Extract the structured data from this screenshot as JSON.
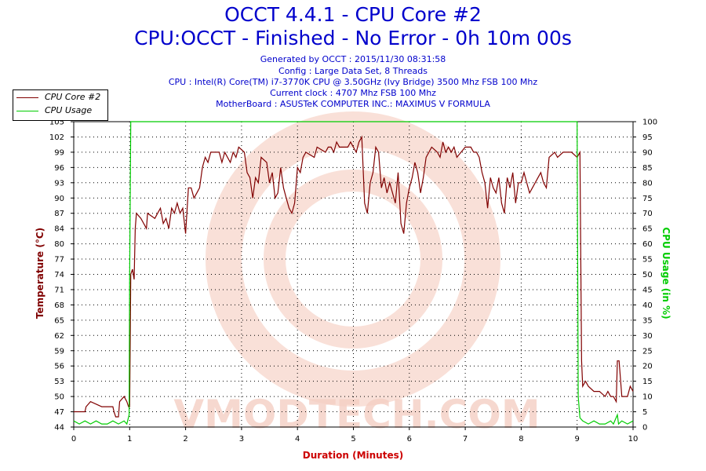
{
  "header": {
    "title": "OCCT 4.4.1 - CPU Core #2",
    "subtitle": "CPU:OCCT - Finished - No Error - 0h 10m 00s",
    "info_lines": [
      "Generated by OCCT : 2015/11/30 08:31:58",
      "Config : Large Data Set, 8 Threads",
      "CPU : Intel(R) Core(TM) i7-3770K CPU @ 3.50GHz (Ivy Bridge) 3500 Mhz FSB 100 Mhz",
      "Current clock : 4707 Mhz FSB 100 Mhz",
      "MotherBoard : ASUSTeK COMPUTER INC.: MAXIMUS V FORMULA"
    ]
  },
  "watermark": "VMODTECH.COM",
  "chart_data": {
    "type": "line",
    "xlabel": "Duration (Minutes)",
    "ylabel_left": "Temperature (°C)",
    "ylabel_right": "CPU Usage (in %)",
    "xlim": [
      0,
      10
    ],
    "x_ticks": [
      "0",
      "1",
      "2",
      "3",
      "4",
      "5",
      "6",
      "7",
      "8",
      "9",
      "10"
    ],
    "ylim_left": [
      44,
      104
    ],
    "y_ticks_left": [
      "44",
      "47",
      "50",
      "53",
      "56",
      "59",
      "62",
      "65",
      "68",
      "71",
      "74",
      "77",
      "80",
      "84",
      "87",
      "90",
      "93",
      "96",
      "99",
      "102",
      "105"
    ],
    "ylim_right": [
      0,
      100
    ],
    "y_ticks_right": [
      "0",
      "5",
      "10",
      "15",
      "20",
      "25",
      "30",
      "35",
      "40",
      "45",
      "50",
      "55",
      "60",
      "65",
      "70",
      "75",
      "80",
      "85",
      "90",
      "95",
      "100"
    ],
    "grid": true,
    "legend_position": "top-left",
    "series": [
      {
        "name": "CPU Core #2",
        "axis": "left",
        "color": "#800000",
        "points": [
          [
            0,
            47
          ],
          [
            0.2,
            47
          ],
          [
            0.22,
            48
          ],
          [
            0.3,
            49
          ],
          [
            0.5,
            48
          ],
          [
            0.7,
            48
          ],
          [
            0.72,
            47
          ],
          [
            0.75,
            46
          ],
          [
            0.8,
            46
          ],
          [
            0.82,
            49
          ],
          [
            0.9,
            50
          ],
          [
            0.95,
            49
          ],
          [
            0.98,
            48
          ],
          [
            1.0,
            48
          ],
          [
            1.02,
            74
          ],
          [
            1.05,
            75
          ],
          [
            1.08,
            73
          ],
          [
            1.1,
            83
          ],
          [
            1.12,
            86
          ],
          [
            1.2,
            85
          ],
          [
            1.3,
            83
          ],
          [
            1.32,
            86
          ],
          [
            1.45,
            85
          ],
          [
            1.5,
            86
          ],
          [
            1.55,
            87
          ],
          [
            1.6,
            84
          ],
          [
            1.65,
            85
          ],
          [
            1.7,
            83
          ],
          [
            1.75,
            87
          ],
          [
            1.8,
            86
          ],
          [
            1.85,
            88
          ],
          [
            1.9,
            86
          ],
          [
            1.95,
            87
          ],
          [
            2.0,
            82
          ],
          [
            2.05,
            91
          ],
          [
            2.1,
            91
          ],
          [
            2.15,
            89
          ],
          [
            2.2,
            90
          ],
          [
            2.25,
            91
          ],
          [
            2.3,
            95
          ],
          [
            2.35,
            97
          ],
          [
            2.4,
            96
          ],
          [
            2.45,
            98
          ],
          [
            2.6,
            98
          ],
          [
            2.65,
            96
          ],
          [
            2.7,
            98
          ],
          [
            2.8,
            96
          ],
          [
            2.85,
            98
          ],
          [
            2.9,
            97
          ],
          [
            2.95,
            99
          ],
          [
            3.05,
            98
          ],
          [
            3.1,
            94
          ],
          [
            3.15,
            93
          ],
          [
            3.2,
            89
          ],
          [
            3.25,
            93
          ],
          [
            3.3,
            92
          ],
          [
            3.35,
            97
          ],
          [
            3.45,
            96
          ],
          [
            3.5,
            92
          ],
          [
            3.55,
            94
          ],
          [
            3.6,
            89
          ],
          [
            3.65,
            90
          ],
          [
            3.7,
            95
          ],
          [
            3.75,
            91
          ],
          [
            3.8,
            89
          ],
          [
            3.85,
            87
          ],
          [
            3.9,
            86
          ],
          [
            3.95,
            88
          ],
          [
            4.0,
            95
          ],
          [
            4.05,
            94
          ],
          [
            4.1,
            97
          ],
          [
            4.15,
            98
          ],
          [
            4.3,
            97
          ],
          [
            4.35,
            99
          ],
          [
            4.5,
            98
          ],
          [
            4.55,
            99
          ],
          [
            4.6,
            99
          ],
          [
            4.65,
            98
          ],
          [
            4.7,
            100
          ],
          [
            4.75,
            99
          ],
          [
            4.8,
            99
          ],
          [
            4.9,
            99
          ],
          [
            4.95,
            100
          ],
          [
            5.0,
            99
          ],
          [
            5.05,
            98
          ],
          [
            5.1,
            100
          ],
          [
            5.15,
            101
          ],
          [
            5.2,
            88
          ],
          [
            5.25,
            86
          ],
          [
            5.3,
            92
          ],
          [
            5.35,
            94
          ],
          [
            5.4,
            99
          ],
          [
            5.45,
            98
          ],
          [
            5.5,
            91
          ],
          [
            5.55,
            93
          ],
          [
            5.6,
            90
          ],
          [
            5.65,
            92
          ],
          [
            5.7,
            90
          ],
          [
            5.75,
            88
          ],
          [
            5.8,
            94
          ],
          [
            5.85,
            84
          ],
          [
            5.9,
            82
          ],
          [
            5.95,
            88
          ],
          [
            6.0,
            91
          ],
          [
            6.05,
            93
          ],
          [
            6.1,
            96
          ],
          [
            6.15,
            94
          ],
          [
            6.2,
            90
          ],
          [
            6.25,
            93
          ],
          [
            6.3,
            97
          ],
          [
            6.4,
            99
          ],
          [
            6.5,
            98
          ],
          [
            6.55,
            97
          ],
          [
            6.6,
            100
          ],
          [
            6.65,
            98
          ],
          [
            6.7,
            99
          ],
          [
            6.75,
            98
          ],
          [
            6.8,
            99
          ],
          [
            6.85,
            97
          ],
          [
            7.0,
            99
          ],
          [
            7.1,
            99
          ],
          [
            7.15,
            98
          ],
          [
            7.2,
            98
          ],
          [
            7.25,
            97
          ],
          [
            7.3,
            94
          ],
          [
            7.35,
            92
          ],
          [
            7.4,
            87
          ],
          [
            7.45,
            93
          ],
          [
            7.5,
            91
          ],
          [
            7.55,
            90
          ],
          [
            7.6,
            93
          ],
          [
            7.65,
            88
          ],
          [
            7.7,
            86
          ],
          [
            7.75,
            93
          ],
          [
            7.8,
            91
          ],
          [
            7.85,
            94
          ],
          [
            7.9,
            88
          ],
          [
            7.95,
            92
          ],
          [
            8.0,
            92
          ],
          [
            8.05,
            94
          ],
          [
            8.1,
            92
          ],
          [
            8.15,
            90
          ],
          [
            8.2,
            91
          ],
          [
            8.3,
            93
          ],
          [
            8.35,
            94
          ],
          [
            8.4,
            92
          ],
          [
            8.45,
            91
          ],
          [
            8.5,
            97
          ],
          [
            8.6,
            98
          ],
          [
            8.65,
            97
          ],
          [
            8.75,
            98
          ],
          [
            8.9,
            98
          ],
          [
            9.0,
            97
          ],
          [
            9.05,
            98
          ],
          [
            9.08,
            57
          ],
          [
            9.1,
            52
          ],
          [
            9.15,
            53
          ],
          [
            9.2,
            52
          ],
          [
            9.3,
            51
          ],
          [
            9.4,
            51
          ],
          [
            9.5,
            50
          ],
          [
            9.55,
            51
          ],
          [
            9.6,
            50
          ],
          [
            9.65,
            50
          ],
          [
            9.7,
            49
          ],
          [
            9.72,
            57
          ],
          [
            9.75,
            57
          ],
          [
            9.8,
            50
          ],
          [
            9.85,
            50
          ],
          [
            9.9,
            50
          ],
          [
            9.95,
            52
          ],
          [
            10.0,
            51
          ]
        ]
      },
      {
        "name": "CPU Usage",
        "axis": "right",
        "color": "#00cc00",
        "points": [
          [
            0,
            2
          ],
          [
            0.1,
            1
          ],
          [
            0.2,
            2
          ],
          [
            0.3,
            1
          ],
          [
            0.4,
            2
          ],
          [
            0.5,
            1
          ],
          [
            0.6,
            1
          ],
          [
            0.7,
            2
          ],
          [
            0.8,
            1
          ],
          [
            0.9,
            2
          ],
          [
            0.95,
            1
          ],
          [
            0.99,
            4
          ],
          [
            1.0,
            50
          ],
          [
            1.02,
            100
          ],
          [
            8.98,
            100
          ],
          [
            9.0,
            100
          ],
          [
            9.02,
            10
          ],
          [
            9.05,
            3
          ],
          [
            9.1,
            2
          ],
          [
            9.2,
            1
          ],
          [
            9.3,
            2
          ],
          [
            9.4,
            1
          ],
          [
            9.5,
            1
          ],
          [
            9.6,
            2
          ],
          [
            9.65,
            1
          ],
          [
            9.72,
            4
          ],
          [
            9.74,
            1
          ],
          [
            9.8,
            2
          ],
          [
            9.9,
            1
          ],
          [
            10.0,
            2
          ]
        ]
      }
    ]
  }
}
